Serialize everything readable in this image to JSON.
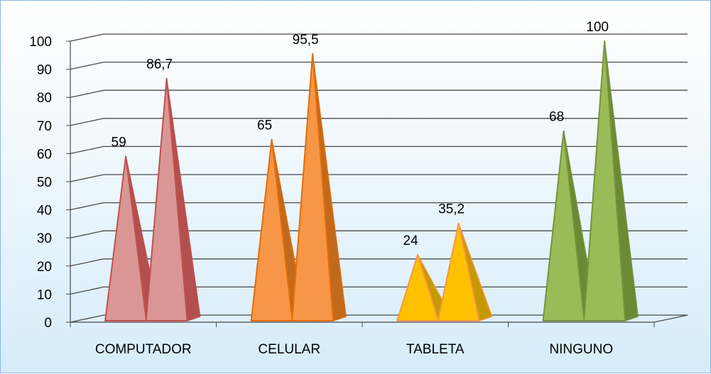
{
  "chart_data": {
    "type": "bar",
    "style": "3d-cone-pyramid",
    "categories": [
      "COMPUTADOR",
      "CELULAR",
      "TABLETA",
      "NINGUNO"
    ],
    "series": [
      {
        "values": [
          59,
          65,
          24,
          68
        ]
      },
      {
        "values": [
          86.7,
          95.5,
          35.2,
          100
        ]
      }
    ],
    "data_labels": [
      [
        "59",
        "65",
        "24",
        "68"
      ],
      [
        "86,7",
        "95,5",
        "35,2",
        "100"
      ]
    ],
    "ylim": [
      0,
      100
    ],
    "yticks": [
      "0",
      "10",
      "20",
      "30",
      "40",
      "50",
      "60",
      "70",
      "80",
      "90",
      "100"
    ],
    "grid": true,
    "legend": "none",
    "category_colors": [
      {
        "fill": "#d99694",
        "stroke": "#c0504d",
        "side": "#b3504e"
      },
      {
        "fill": "#f79646",
        "stroke": "#e46c0a",
        "side": "#c26a1c"
      },
      {
        "fill": "#ffc000",
        "stroke": "#f79646",
        "side": "#c49a00"
      },
      {
        "fill": "#9bbb59",
        "stroke": "#77933c",
        "side": "#6b8a33"
      }
    ],
    "gridline_color": "#4a4a4a",
    "background_color": "#e4f3fc"
  }
}
